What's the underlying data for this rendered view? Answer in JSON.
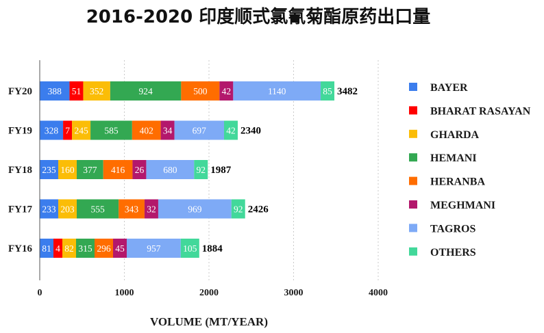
{
  "chart_data": {
    "type": "bar",
    "orientation": "horizontal",
    "stacked": true,
    "title": "2016-2020 印度顺式氯氰菊酯原药出口量",
    "xlabel": "VOLUME (MT/YEAR)",
    "xlim": [
      0,
      4000
    ],
    "xticks": [
      0,
      1000,
      2000,
      3000,
      4000
    ],
    "grid": true,
    "legend": "right",
    "categories": [
      "FY20",
      "FY19",
      "FY18",
      "FY17",
      "FY16"
    ],
    "series": [
      {
        "name": "BAYER",
        "color": "#3b7ded",
        "values": [
          388,
          328,
          235,
          233,
          81
        ]
      },
      {
        "name": "BHARAT RASAYAN",
        "color": "#ff0000",
        "values": [
          51,
          7,
          null,
          null,
          4
        ]
      },
      {
        "name": "GHARDA",
        "color": "#fbbd07",
        "values": [
          352,
          245,
          160,
          203,
          82
        ]
      },
      {
        "name": "HEMANI",
        "color": "#33a852",
        "values": [
          924,
          585,
          377,
          555,
          315
        ]
      },
      {
        "name": "HERANBA",
        "color": "#ff6d00",
        "values": [
          500,
          402,
          416,
          343,
          296
        ]
      },
      {
        "name": "MEGHMANI",
        "color": "#b3186c",
        "values": [
          42,
          34,
          26,
          32,
          45
        ]
      },
      {
        "name": "TAGROS",
        "color": "#7eaaf6",
        "values": [
          1140,
          697,
          680,
          969,
          957
        ]
      },
      {
        "name": "OTHERS",
        "color": "#42d89a",
        "values": [
          85,
          42,
          92,
          92,
          105
        ]
      }
    ],
    "totals": [
      3482,
      2340,
      1987,
      2426,
      1884
    ]
  }
}
